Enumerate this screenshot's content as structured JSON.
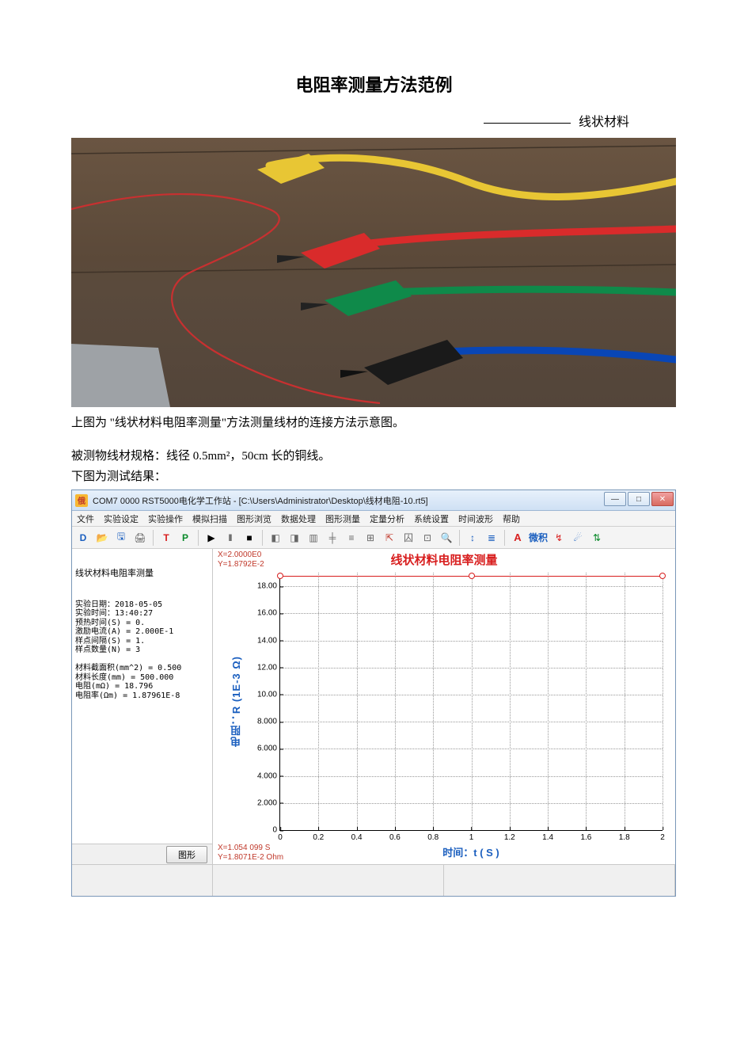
{
  "doc": {
    "title": "电阻率测量方法范例",
    "subtitle": "线状材料",
    "caption_below_photo": "上图为 \"线状材料电阻率测量\"方法测量线材的连接方法示意图。",
    "spec_line": "被测物线材规格：线径 0.5mm²，50cm 长的铜线。",
    "result_intro": "下图为测试结果："
  },
  "photo": {
    "background_gradient": [
      "#6a5542",
      "#53453a"
    ],
    "wires": {
      "yellow": "#e8c634",
      "red": "#d92b2b",
      "red_thin": "#c83030",
      "green": "#0f8a4a",
      "blue": "#0946b6",
      "black": "#1a1a1a"
    }
  },
  "app": {
    "titlebar": {
      "icon_text": "俄",
      "title": "COM7 0000 RST5000电化学工作站 - [C:\\Users\\Administrator\\Desktop\\线材电阻-10.rt5]"
    },
    "win_buttons": {
      "min": "—",
      "max": "□",
      "close": "✕"
    },
    "menu": [
      "文件",
      "实验设定",
      "实验操作",
      "模拟扫描",
      "图形浏览",
      "数据处理",
      "图形测量",
      "定量分析",
      "系统设置",
      "时间波形",
      "帮助"
    ],
    "toolbar": [
      {
        "t": "D",
        "c": "#1b5fbf",
        "w": "bold"
      },
      {
        "t": "📂",
        "c": "#c78a1a"
      },
      {
        "t": "🖫",
        "c": "#1b5fbf"
      },
      {
        "t": "🖨",
        "c": "#555"
      },
      {
        "sep": true
      },
      {
        "t": "T",
        "c": "#d81e1e",
        "w": "bold"
      },
      {
        "t": "P",
        "c": "#0a8a2a",
        "w": "bold"
      },
      {
        "sep": true
      },
      {
        "t": "▶",
        "c": "#000"
      },
      {
        "t": "‖",
        "c": "#000"
      },
      {
        "t": "■",
        "c": "#000"
      },
      {
        "sep": true
      },
      {
        "t": "◧",
        "c": "#666"
      },
      {
        "t": "◨",
        "c": "#666"
      },
      {
        "t": "▥",
        "c": "#666"
      },
      {
        "t": "╪",
        "c": "#666"
      },
      {
        "t": "≡",
        "c": "#666"
      },
      {
        "t": "⊞",
        "c": "#666"
      },
      {
        "t": "⇱",
        "c": "#c0392b"
      },
      {
        "t": "囚",
        "c": "#666"
      },
      {
        "t": "⊡",
        "c": "#666"
      },
      {
        "t": "🔍",
        "c": "#555"
      },
      {
        "sep": true
      },
      {
        "t": "↕",
        "c": "#1b5fbf"
      },
      {
        "t": "≣",
        "c": "#1b5fbf"
      },
      {
        "sep": true
      },
      {
        "t": "A",
        "c": "#d81e1e",
        "w": "bold",
        "fs": "13px"
      },
      {
        "t": "微积",
        "c": "#1b5fbf",
        "w": "bold"
      },
      {
        "t": "↯",
        "c": "#d81e1e"
      },
      {
        "t": "☄",
        "c": "#1b5fbf"
      },
      {
        "t": "⇅",
        "c": "#0a8a2a"
      }
    ],
    "left_panel": {
      "heading": "线状材料电阻率测量",
      "lines": [
        "实验日期：2018-05-05",
        "实验时间：13:40:27",
        "预热时间(S) = 0.",
        "激励电流(A) = 2.000E-1",
        "样点间隔(S) = 1.",
        "样点数量(N) = 3",
        "",
        "材料截面积(mm^2) = 0.500",
        "材料长度(mm) = 500.000",
        "电阻(mΩ) = 18.796",
        "电阻率(Ωm) = 1.87961E-8"
      ],
      "button": "图形"
    },
    "chart": {
      "title": "线状材料电阻率测量",
      "coord_top": [
        "X=2.0000E0",
        "Y=1.8792E-2"
      ],
      "coord_bot": [
        "X=1.054 099 S",
        "Y=1.8071E-2 Ohm"
      ],
      "ylabel": "电阻：R (1E-3 Ω)",
      "xlabel": "时间：t ( S )",
      "xlim": [
        0,
        2.0
      ],
      "ylim": [
        0,
        19.0
      ],
      "xticks": [
        0,
        0.2,
        0.4,
        0.6,
        0.8,
        1.0,
        1.2,
        1.4,
        1.6,
        1.8,
        2
      ],
      "yticks": [
        0,
        2.0,
        4.0,
        6.0,
        8.0,
        10.0,
        12.0,
        14.0,
        16.0,
        18.0
      ],
      "ytick_labels": [
        "0",
        "2.000",
        "4.000",
        "6.000",
        "8.000",
        "10.00",
        "12.00",
        "14.00",
        "16.00",
        "18.00"
      ],
      "series": {
        "color": "#d81e1e",
        "marker": "circle",
        "points": [
          [
            0,
            18.79
          ],
          [
            1,
            18.79
          ],
          [
            2,
            18.79
          ]
        ]
      },
      "grid_color": "#999999",
      "axis_color": "#000000",
      "background": "#ffffff"
    }
  }
}
